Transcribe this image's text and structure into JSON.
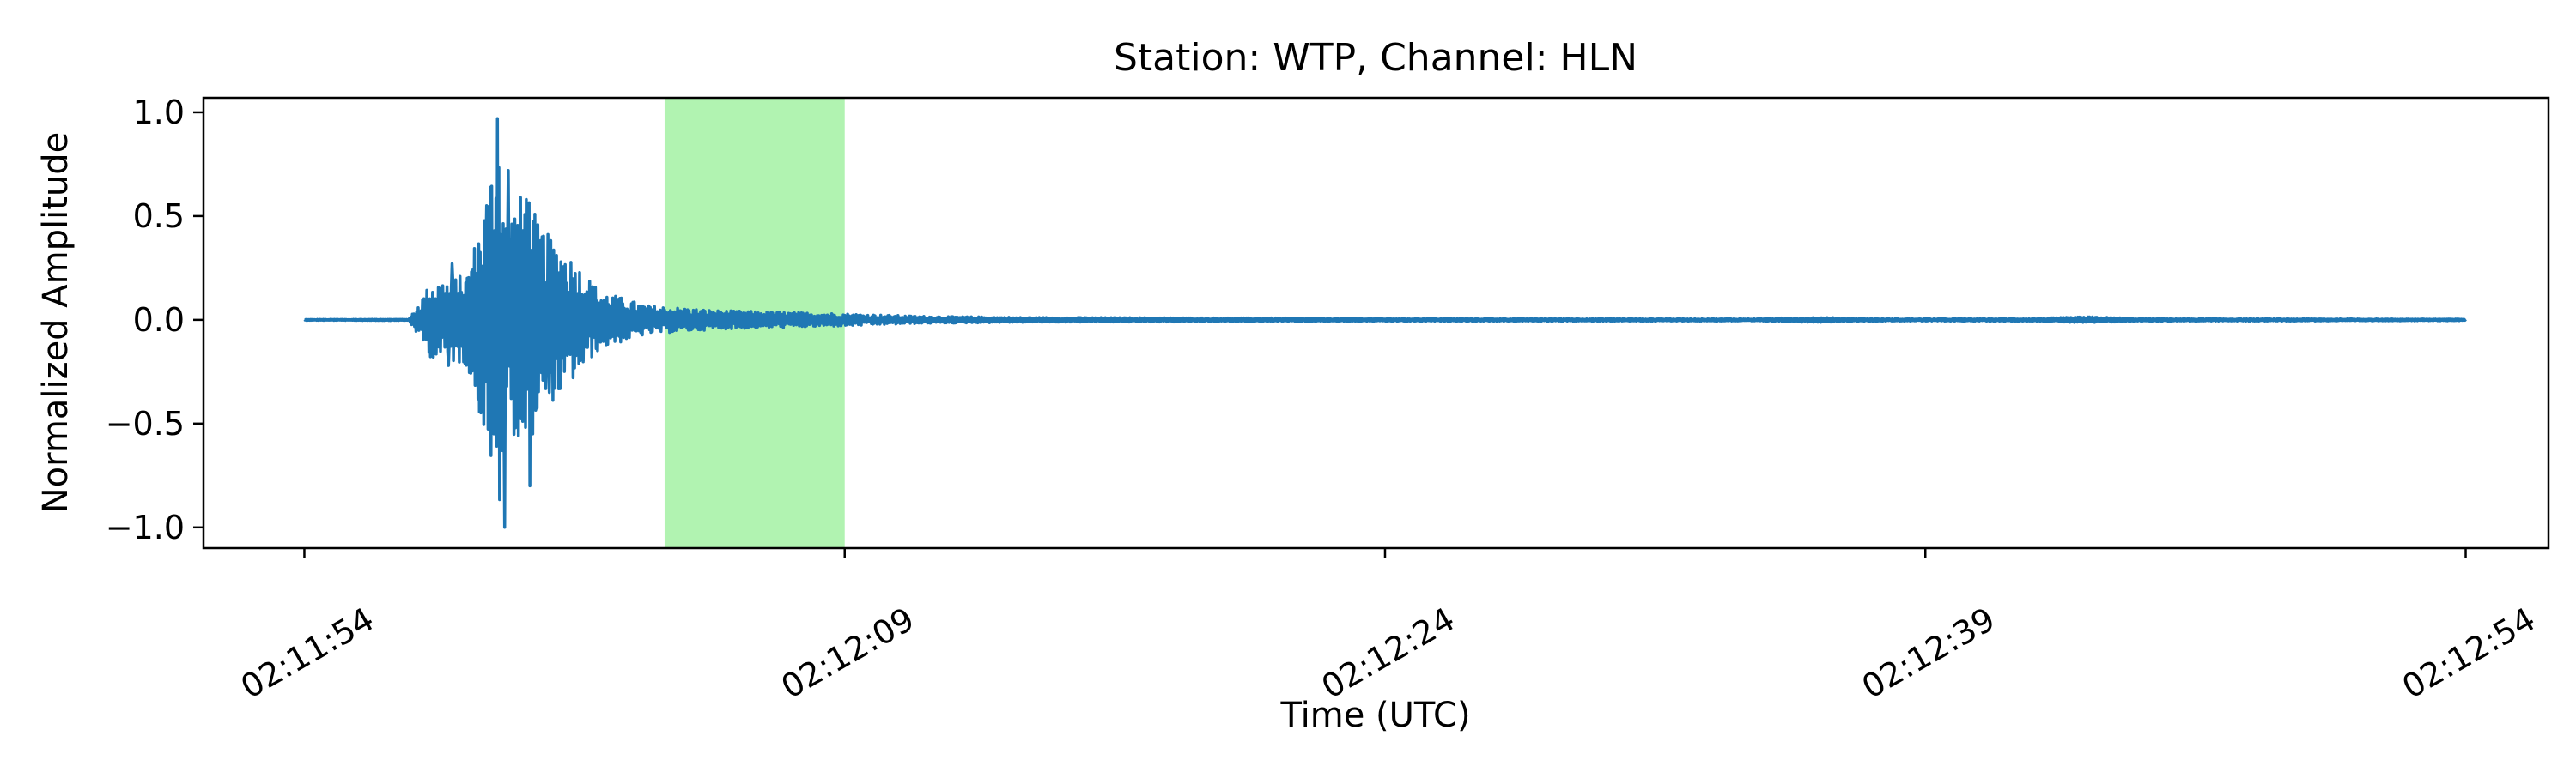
{
  "chart_data": {
    "type": "line",
    "title": "Station: WTP, Channel: HLN",
    "xlabel": "Time (UTC)",
    "ylabel": "Normalized Amplitude",
    "x_domain_seconds": [
      -2.8,
      62.3
    ],
    "ylim": [
      -1.1,
      1.07
    ],
    "grid": false,
    "x_ticks": [
      {
        "label": "02:11:54",
        "t": 0
      },
      {
        "label": "02:12:09",
        "t": 15
      },
      {
        "label": "02:12:24",
        "t": 30
      },
      {
        "label": "02:12:39",
        "t": 45
      },
      {
        "label": "02:12:54",
        "t": 60
      }
    ],
    "y_ticks": [
      {
        "label": "1.0",
        "value": 1.0
      },
      {
        "label": "0.5",
        "value": 0.5
      },
      {
        "label": "0.0",
        "value": 0.0
      },
      {
        "label": "−0.5",
        "value": -0.5
      },
      {
        "label": "−1.0",
        "value": -1.0
      }
    ],
    "highlight_window": {
      "start": 10.0,
      "end": 15.0,
      "color": "#90ee90"
    },
    "series": [
      {
        "color": "#1f77b4",
        "envelope_keyframes": [
          [
            0,
            0.002
          ],
          [
            2.9,
            0.003
          ],
          [
            3.1,
            0.06
          ],
          [
            3.5,
            0.18
          ],
          [
            4.5,
            0.22
          ],
          [
            5.0,
            0.55
          ],
          [
            5.4,
            0.97
          ],
          [
            5.6,
            0.5
          ],
          [
            6.2,
            0.65
          ],
          [
            6.5,
            0.45
          ],
          [
            7.2,
            0.35
          ],
          [
            8.2,
            0.14
          ],
          [
            9.5,
            0.07
          ],
          [
            11.5,
            0.045
          ],
          [
            15,
            0.03
          ],
          [
            17,
            0.018
          ],
          [
            20,
            0.012
          ],
          [
            30,
            0.008
          ],
          [
            40,
            0.006
          ],
          [
            42,
            0.012
          ],
          [
            44,
            0.006
          ],
          [
            48,
            0.007
          ],
          [
            49.5,
            0.015
          ],
          [
            51,
            0.007
          ],
          [
            60,
            0.004
          ]
        ],
        "peaks": [
          {
            "t": 5.35,
            "y": 0.97
          },
          {
            "t": 5.55,
            "y": -1.0
          },
          {
            "t": 5.25,
            "y": -0.55
          },
          {
            "t": 5.65,
            "y": 0.72
          },
          {
            "t": 6.15,
            "y": 0.58
          },
          {
            "t": 6.25,
            "y": -0.8
          },
          {
            "t": 4.1,
            "y": 0.27
          },
          {
            "t": 4.0,
            "y": -0.22
          },
          {
            "t": 5.05,
            "y": 0.55
          },
          {
            "t": 6.6,
            "y": 0.4
          },
          {
            "t": 6.8,
            "y": -0.35
          },
          {
            "t": 5.85,
            "y": -0.52
          }
        ]
      }
    ]
  }
}
